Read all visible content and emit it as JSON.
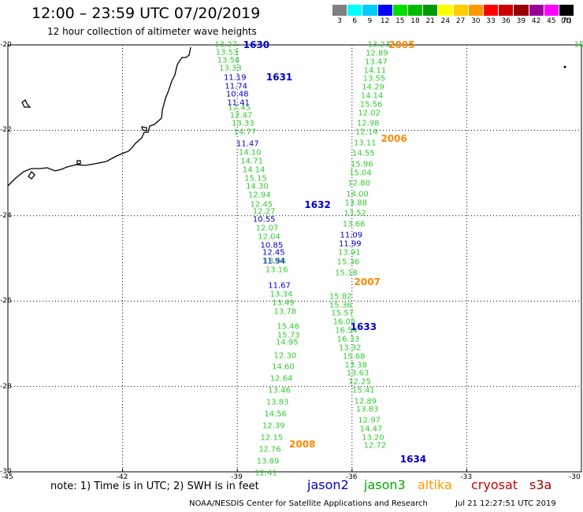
{
  "title": "12:00 – 23:59 UTC 07/20/2019",
  "subtitle": "12 hour collection of altimeter wave heights",
  "colorbar": {
    "colors": [
      "#808080",
      "#00ffff",
      "#00ccff",
      "#0000ff",
      "#00dd00",
      "#00bb00",
      "#009900",
      "#ffff00",
      "#ffcc00",
      "#ff9900",
      "#ff0000",
      "#cc0000",
      "#990000",
      "#990099",
      "#ff00ff",
      "#000000"
    ],
    "values": [
      "3",
      "6",
      "9",
      "12",
      "15",
      "18",
      "21",
      "24",
      "27",
      "30",
      "33",
      "36",
      "39",
      "42",
      "45",
      "70"
    ],
    "unit": "(ft)"
  },
  "axes": {
    "lat_labels": [
      "-20",
      "-22",
      "-24",
      "-26",
      "-28",
      "-30"
    ],
    "lon_labels": [
      "-45",
      "-42",
      "-39",
      "-36",
      "-33",
      "-30"
    ],
    "lon_range": [
      -45,
      -30
    ],
    "lat_range": [
      -20,
      -30
    ]
  },
  "tracks": [
    {
      "satellite": "jason3",
      "color": "#33cc33",
      "points": [
        {
          "lon": -39.3,
          "lat": -20.0,
          "v": "13.27"
        },
        {
          "lon": -39.27,
          "lat": -20.18,
          "v": "13.53"
        },
        {
          "lon": -39.23,
          "lat": -20.37,
          "v": "13.58"
        },
        {
          "lon": -39.18,
          "lat": -20.56,
          "v": "13.33"
        },
        {
          "lon": -38.95,
          "lat": -21.47,
          "v": "12.45"
        },
        {
          "lon": -38.9,
          "lat": -21.66,
          "v": "12.47"
        },
        {
          "lon": -38.85,
          "lat": -21.85,
          "v": "13.33"
        },
        {
          "lon": -38.8,
          "lat": -22.05,
          "v": "14.77"
        },
        {
          "lon": -38.67,
          "lat": -22.53,
          "v": "14.10"
        },
        {
          "lon": -38.62,
          "lat": -22.73,
          "v": "14.71"
        },
        {
          "lon": -38.57,
          "lat": -22.93,
          "v": "14.14"
        },
        {
          "lon": -38.52,
          "lat": -23.13,
          "v": "15.15"
        },
        {
          "lon": -38.48,
          "lat": -23.33,
          "v": "14.30"
        },
        {
          "lon": -38.42,
          "lat": -23.53,
          "v": "12.94"
        },
        {
          "lon": -38.37,
          "lat": -23.74,
          "v": "12.45"
        },
        {
          "lon": -38.3,
          "lat": -23.92,
          "v": "12.27"
        },
        {
          "lon": -38.22,
          "lat": -24.3,
          "v": "12.07"
        },
        {
          "lon": -38.17,
          "lat": -24.5,
          "v": "12.04"
        },
        {
          "lon": -38.02,
          "lat": -25.07,
          "v": "13.54"
        },
        {
          "lon": -37.97,
          "lat": -25.27,
          "v": "13.16"
        },
        {
          "lon": -37.85,
          "lat": -25.85,
          "v": "13.34"
        },
        {
          "lon": -37.8,
          "lat": -26.05,
          "v": "13.49"
        },
        {
          "lon": -37.75,
          "lat": -26.25,
          "v": "13.78"
        },
        {
          "lon": -37.67,
          "lat": -26.6,
          "v": "15.46"
        },
        {
          "lon": -37.66,
          "lat": -26.8,
          "v": "15.73"
        },
        {
          "lon": -37.7,
          "lat": -26.98,
          "v": "14.95"
        },
        {
          "lon": -37.75,
          "lat": -27.28,
          "v": "12.30"
        },
        {
          "lon": -37.8,
          "lat": -27.55,
          "v": "14.60"
        },
        {
          "lon": -37.85,
          "lat": -27.83,
          "v": "12.64"
        },
        {
          "lon": -37.9,
          "lat": -28.1,
          "v": "13.46"
        },
        {
          "lon": -37.95,
          "lat": -28.38,
          "v": "13.83"
        },
        {
          "lon": -38.0,
          "lat": -28.66,
          "v": "14.56"
        },
        {
          "lon": -38.05,
          "lat": -28.93,
          "v": "12.39"
        },
        {
          "lon": -38.1,
          "lat": -29.2,
          "v": "12.15"
        },
        {
          "lon": -38.15,
          "lat": -29.48,
          "v": "12.76"
        },
        {
          "lon": -38.2,
          "lat": -29.76,
          "v": "13.89"
        },
        {
          "lon": -38.25,
          "lat": -30.03,
          "v": "12.41"
        }
      ]
    },
    {
      "satellite": "jason2",
      "color": "#0000cc",
      "points": [
        {
          "lon": -39.06,
          "lat": -20.78,
          "v": "11.19"
        },
        {
          "lon": -39.03,
          "lat": -20.98,
          "v": "11.74"
        },
        {
          "lon": -39.0,
          "lat": -21.17,
          "v": "10.48"
        },
        {
          "lon": -38.97,
          "lat": -21.37,
          "v": "11.41"
        },
        {
          "lon": -38.73,
          "lat": -22.33,
          "v": "11.47"
        },
        {
          "lon": -38.3,
          "lat": -24.1,
          "v": "10.55"
        },
        {
          "lon": -38.1,
          "lat": -24.7,
          "v": "10.85"
        },
        {
          "lon": -38.05,
          "lat": -24.88,
          "v": "12.45"
        },
        {
          "lon": -38.05,
          "lat": -25.07,
          "v": "11.94"
        },
        {
          "lon": -37.9,
          "lat": -25.64,
          "v": "11.67"
        }
      ]
    },
    {
      "satellite": "jason3",
      "color": "#33cc33",
      "points": [
        {
          "lon": -35.3,
          "lat": -20.0,
          "v": "13.23"
        },
        {
          "lon": -35.35,
          "lat": -20.2,
          "v": "12.89"
        },
        {
          "lon": -35.37,
          "lat": -20.4,
          "v": "13.47"
        },
        {
          "lon": -35.4,
          "lat": -20.6,
          "v": "14.11"
        },
        {
          "lon": -35.42,
          "lat": -20.8,
          "v": "13.55"
        },
        {
          "lon": -35.45,
          "lat": -21.0,
          "v": "14.29"
        },
        {
          "lon": -35.48,
          "lat": -21.2,
          "v": "14.14"
        },
        {
          "lon": -35.5,
          "lat": -21.4,
          "v": "15.56"
        },
        {
          "lon": -35.55,
          "lat": -21.6,
          "v": "12.02"
        },
        {
          "lon": -35.58,
          "lat": -21.85,
          "v": "12.98"
        },
        {
          "lon": -35.62,
          "lat": -22.05,
          "v": "12.14"
        },
        {
          "lon": -35.66,
          "lat": -22.3,
          "v": "13.11"
        },
        {
          "lon": -35.7,
          "lat": -22.55,
          "v": "14.55"
        },
        {
          "lon": -35.74,
          "lat": -22.8,
          "v": "15.96"
        },
        {
          "lon": -35.78,
          "lat": -23.0,
          "v": "15.04"
        },
        {
          "lon": -35.82,
          "lat": -23.25,
          "v": "12.80"
        },
        {
          "lon": -35.86,
          "lat": -23.5,
          "v": "14.00"
        },
        {
          "lon": -35.9,
          "lat": -23.7,
          "v": "13.88"
        },
        {
          "lon": -35.92,
          "lat": -23.95,
          "v": "13.52"
        },
        {
          "lon": -35.95,
          "lat": -24.2,
          "v": "13.66"
        },
        {
          "lon": -36.07,
          "lat": -24.87,
          "v": "13.91"
        },
        {
          "lon": -36.1,
          "lat": -25.1,
          "v": "15.36"
        },
        {
          "lon": -36.15,
          "lat": -25.35,
          "v": "15.18"
        },
        {
          "lon": -36.3,
          "lat": -25.9,
          "v": "15.82"
        },
        {
          "lon": -36.3,
          "lat": -26.1,
          "v": "15.36"
        },
        {
          "lon": -36.25,
          "lat": -26.3,
          "v": "15.57"
        },
        {
          "lon": -36.2,
          "lat": -26.5,
          "v": "16.05"
        },
        {
          "lon": -36.15,
          "lat": -26.7,
          "v": "16.54"
        },
        {
          "lon": -36.1,
          "lat": -26.9,
          "v": "16.33"
        },
        {
          "lon": -36.05,
          "lat": -27.1,
          "v": "13.32"
        },
        {
          "lon": -35.95,
          "lat": -27.3,
          "v": "15.68"
        },
        {
          "lon": -35.9,
          "lat": -27.5,
          "v": "13.38"
        },
        {
          "lon": -35.85,
          "lat": -27.7,
          "v": "13.63"
        },
        {
          "lon": -35.8,
          "lat": -27.9,
          "v": "12.25"
        },
        {
          "lon": -35.7,
          "lat": -28.1,
          "v": "15.41"
        },
        {
          "lon": -35.65,
          "lat": -28.35,
          "v": "12.89"
        },
        {
          "lon": -35.6,
          "lat": -28.55,
          "v": "13.83"
        },
        {
          "lon": -35.55,
          "lat": -28.8,
          "v": "12.97"
        },
        {
          "lon": -35.5,
          "lat": -29.0,
          "v": "14.47"
        },
        {
          "lon": -35.45,
          "lat": -29.2,
          "v": "13.20"
        },
        {
          "lon": -35.4,
          "lat": -29.4,
          "v": "12.72"
        }
      ]
    },
    {
      "satellite": "jason2",
      "color": "#0000cc",
      "points": [
        {
          "lon": -36.02,
          "lat": -24.47,
          "v": "11.09"
        },
        {
          "lon": -36.05,
          "lat": -24.67,
          "v": "11.99"
        }
      ]
    }
  ],
  "pass_labels": [
    {
      "text": "1630",
      "color": "#0000cc",
      "lon": -38.5,
      "lat": -20.0
    },
    {
      "text": "1631",
      "color": "#0000cc",
      "lon": -37.9,
      "lat": -20.75
    },
    {
      "text": "1632",
      "color": "#0000cc",
      "lon": -36.9,
      "lat": -23.75
    },
    {
      "text": "1633",
      "color": "#0000cc",
      "lon": -35.7,
      "lat": -26.6
    },
    {
      "text": "1634",
      "color": "#0000cc",
      "lon": -34.4,
      "lat": -29.7
    },
    {
      "text": "2005",
      "color": "#ff8800",
      "lon": -34.7,
      "lat": -20.0
    },
    {
      "text": "2006",
      "color": "#ff8800",
      "lon": -34.9,
      "lat": -22.2
    },
    {
      "text": "2007",
      "color": "#ff8800",
      "lon": -35.6,
      "lat": -25.55
    },
    {
      "text": "2008",
      "color": "#ff8800",
      "lon": -37.3,
      "lat": -29.35
    }
  ],
  "edge_label": {
    "text": "15",
    "color": "#33cc33"
  },
  "note": "note: 1) Time is in UTC; 2) SWH is in feet",
  "satellites": [
    {
      "name": "jason2",
      "color": "#0000cc"
    },
    {
      "name": "jason3",
      "color": "#00aa00"
    },
    {
      "name": "altika",
      "color": "#ff9900"
    },
    {
      "name": "cryosat",
      "color": "#cc0000"
    },
    {
      "name": "s3a",
      "color": "#990000"
    }
  ],
  "credit": "NOAA/NESDIS Center for Satellite Applications and Research",
  "timestamp": "Jul 21 12:27:51 UTC 2019"
}
